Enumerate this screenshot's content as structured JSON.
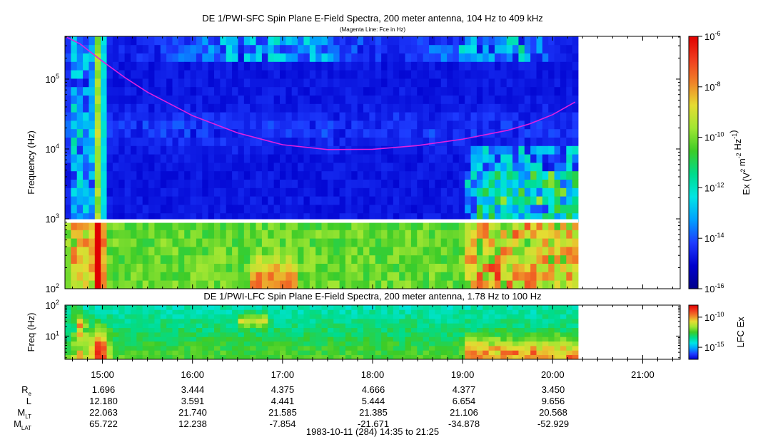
{
  "chart_data": [
    {
      "type": "heatmap",
      "title": "DE 1/PWI-SFC  Spin Plane E-Field Spectra, 200 meter antenna, 104 Hz to 409 kHz",
      "subtitle": "(Magenta Line: Fce in Hz)",
      "ylabel": "Frequency (Hz)",
      "y_scale": "log",
      "ylim": [
        100,
        409000
      ],
      "y_ticks": [
        {
          "value": 100,
          "label": "10",
          "exp": "2"
        },
        {
          "value": 1000,
          "label": "10",
          "exp": "3"
        },
        {
          "value": 10000,
          "label": "10",
          "exp": "4"
        },
        {
          "value": 100000,
          "label": "10",
          "exp": "5"
        }
      ],
      "xlim": [
        "14:35",
        "21:25"
      ],
      "data_end": "20:17",
      "colorbar": {
        "label": "Ex (V",
        "label_parts": [
          "Ex (V",
          "2",
          " m",
          "-2",
          " Hz",
          "-1",
          ")"
        ],
        "scale": "log",
        "range": [
          1e-16,
          1e-06
        ],
        "ticks": [
          {
            "value": 1e-06,
            "label": "10",
            "exp": "-6"
          },
          {
            "value": 1e-08,
            "label": "10",
            "exp": "-8"
          },
          {
            "value": 1e-10,
            "label": "10",
            "exp": "-10"
          },
          {
            "value": 1e-12,
            "label": "10",
            "exp": "-12"
          },
          {
            "value": 1e-14,
            "label": "10",
            "exp": "-14"
          },
          {
            "value": 1e-16,
            "label": "10",
            "exp": "-16"
          }
        ],
        "colors": [
          "#00008b",
          "#0000cd",
          "#1e3cff",
          "#00a0ff",
          "#00e5e5",
          "#00dc8c",
          "#3ccc28",
          "#a0e632",
          "#e6dc32",
          "#f08228",
          "#f03c1e",
          "#e00000"
        ]
      },
      "series": [
        {
          "name": "Fce",
          "color": "#e020e0",
          "x": [
            "14:35",
            "14:45",
            "15:00",
            "15:15",
            "15:30",
            "16:00",
            "16:30",
            "17:00",
            "17:30",
            "18:00",
            "18:30",
            "19:00",
            "19:30",
            "19:45",
            "20:00",
            "20:15"
          ],
          "y": [
            409000,
            320000,
            180000,
            105000,
            65000,
            30000,
            17000,
            11500,
            9800,
            9900,
            11200,
            13800,
            18500,
            23000,
            31000,
            47000
          ]
        }
      ]
    },
    {
      "type": "heatmap",
      "title": "DE 1/PWI-LFC  Spin Plane E-Field Spectra, 200 meter antenna, 1.78 Hz to 100 Hz",
      "ylabel": "Freq (Hz)",
      "y_scale": "log",
      "ylim": [
        1.78,
        100
      ],
      "y_ticks": [
        {
          "value": 10,
          "label": "10",
          "exp": "1"
        },
        {
          "value": 100,
          "label": "10",
          "exp": "2"
        }
      ],
      "xlim": [
        "14:35",
        "21:25"
      ],
      "data_end": "20:17",
      "x_ticks": [
        "15:00",
        "16:00",
        "17:00",
        "18:00",
        "19:00",
        "20:00",
        "21:00"
      ],
      "colorbar": {
        "label": "LFC Ex",
        "scale": "log",
        "range": [
          1e-17,
          1e-08
        ],
        "ticks": [
          {
            "value": 1e-10,
            "label": "10",
            "exp": "-10"
          },
          {
            "value": 1e-15,
            "label": "10",
            "exp": "-15"
          }
        ],
        "colors": [
          "#0000cd",
          "#1e3cff",
          "#00a0ff",
          "#00e5e5",
          "#00dc8c",
          "#3ccc28",
          "#a0e632",
          "#e6dc32",
          "#f08228",
          "#f03c1e",
          "#e00000"
        ]
      }
    }
  ],
  "ephemeris": {
    "rows": [
      {
        "label": "R",
        "sub": "e",
        "values": [
          "1.696",
          "3.444",
          "4.375",
          "4.666",
          "4.377",
          "3.450"
        ]
      },
      {
        "label": "L",
        "sub": "",
        "values": [
          "12.180",
          "3.591",
          "4.441",
          "5.444",
          "6.654",
          "9.656"
        ]
      },
      {
        "label": "M",
        "sub": "LT",
        "values": [
          "22.063",
          "21.740",
          "21.585",
          "21.385",
          "21.106",
          "20.568"
        ]
      },
      {
        "label": "M",
        "sub": "LAT",
        "values": [
          "65.722",
          "12.238",
          "-7.854",
          "-21.671",
          "-34.878",
          "-52.929"
        ]
      }
    ]
  },
  "footer": "1983-10-11 (284) 14:35 to 21:25"
}
